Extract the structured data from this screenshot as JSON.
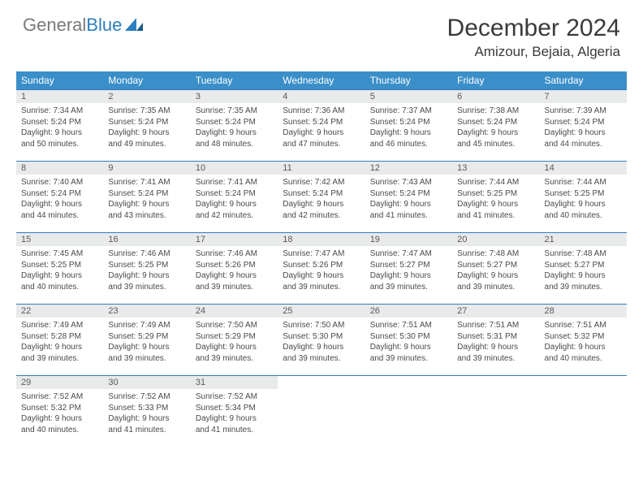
{
  "logo": {
    "text1": "General",
    "text2": "Blue"
  },
  "header": {
    "title": "December 2024",
    "location": "Amizour, Bejaia, Algeria"
  },
  "colors": {
    "header_bg": "#3b8fc9",
    "header_fg": "#ffffff",
    "daynum_bg": "#e9eaea",
    "border": "#2d7fbf",
    "logo_gray": "#7a7a7a",
    "logo_blue": "#2d7fbf"
  },
  "columns": [
    "Sunday",
    "Monday",
    "Tuesday",
    "Wednesday",
    "Thursday",
    "Friday",
    "Saturday"
  ],
  "weeks": [
    [
      {
        "n": "1",
        "sr": "Sunrise: 7:34 AM",
        "ss": "Sunset: 5:24 PM",
        "d1": "Daylight: 9 hours",
        "d2": "and 50 minutes."
      },
      {
        "n": "2",
        "sr": "Sunrise: 7:35 AM",
        "ss": "Sunset: 5:24 PM",
        "d1": "Daylight: 9 hours",
        "d2": "and 49 minutes."
      },
      {
        "n": "3",
        "sr": "Sunrise: 7:35 AM",
        "ss": "Sunset: 5:24 PM",
        "d1": "Daylight: 9 hours",
        "d2": "and 48 minutes."
      },
      {
        "n": "4",
        "sr": "Sunrise: 7:36 AM",
        "ss": "Sunset: 5:24 PM",
        "d1": "Daylight: 9 hours",
        "d2": "and 47 minutes."
      },
      {
        "n": "5",
        "sr": "Sunrise: 7:37 AM",
        "ss": "Sunset: 5:24 PM",
        "d1": "Daylight: 9 hours",
        "d2": "and 46 minutes."
      },
      {
        "n": "6",
        "sr": "Sunrise: 7:38 AM",
        "ss": "Sunset: 5:24 PM",
        "d1": "Daylight: 9 hours",
        "d2": "and 45 minutes."
      },
      {
        "n": "7",
        "sr": "Sunrise: 7:39 AM",
        "ss": "Sunset: 5:24 PM",
        "d1": "Daylight: 9 hours",
        "d2": "and 44 minutes."
      }
    ],
    [
      {
        "n": "8",
        "sr": "Sunrise: 7:40 AM",
        "ss": "Sunset: 5:24 PM",
        "d1": "Daylight: 9 hours",
        "d2": "and 44 minutes."
      },
      {
        "n": "9",
        "sr": "Sunrise: 7:41 AM",
        "ss": "Sunset: 5:24 PM",
        "d1": "Daylight: 9 hours",
        "d2": "and 43 minutes."
      },
      {
        "n": "10",
        "sr": "Sunrise: 7:41 AM",
        "ss": "Sunset: 5:24 PM",
        "d1": "Daylight: 9 hours",
        "d2": "and 42 minutes."
      },
      {
        "n": "11",
        "sr": "Sunrise: 7:42 AM",
        "ss": "Sunset: 5:24 PM",
        "d1": "Daylight: 9 hours",
        "d2": "and 42 minutes."
      },
      {
        "n": "12",
        "sr": "Sunrise: 7:43 AM",
        "ss": "Sunset: 5:24 PM",
        "d1": "Daylight: 9 hours",
        "d2": "and 41 minutes."
      },
      {
        "n": "13",
        "sr": "Sunrise: 7:44 AM",
        "ss": "Sunset: 5:25 PM",
        "d1": "Daylight: 9 hours",
        "d2": "and 41 minutes."
      },
      {
        "n": "14",
        "sr": "Sunrise: 7:44 AM",
        "ss": "Sunset: 5:25 PM",
        "d1": "Daylight: 9 hours",
        "d2": "and 40 minutes."
      }
    ],
    [
      {
        "n": "15",
        "sr": "Sunrise: 7:45 AM",
        "ss": "Sunset: 5:25 PM",
        "d1": "Daylight: 9 hours",
        "d2": "and 40 minutes."
      },
      {
        "n": "16",
        "sr": "Sunrise: 7:46 AM",
        "ss": "Sunset: 5:25 PM",
        "d1": "Daylight: 9 hours",
        "d2": "and 39 minutes."
      },
      {
        "n": "17",
        "sr": "Sunrise: 7:46 AM",
        "ss": "Sunset: 5:26 PM",
        "d1": "Daylight: 9 hours",
        "d2": "and 39 minutes."
      },
      {
        "n": "18",
        "sr": "Sunrise: 7:47 AM",
        "ss": "Sunset: 5:26 PM",
        "d1": "Daylight: 9 hours",
        "d2": "and 39 minutes."
      },
      {
        "n": "19",
        "sr": "Sunrise: 7:47 AM",
        "ss": "Sunset: 5:27 PM",
        "d1": "Daylight: 9 hours",
        "d2": "and 39 minutes."
      },
      {
        "n": "20",
        "sr": "Sunrise: 7:48 AM",
        "ss": "Sunset: 5:27 PM",
        "d1": "Daylight: 9 hours",
        "d2": "and 39 minutes."
      },
      {
        "n": "21",
        "sr": "Sunrise: 7:48 AM",
        "ss": "Sunset: 5:27 PM",
        "d1": "Daylight: 9 hours",
        "d2": "and 39 minutes."
      }
    ],
    [
      {
        "n": "22",
        "sr": "Sunrise: 7:49 AM",
        "ss": "Sunset: 5:28 PM",
        "d1": "Daylight: 9 hours",
        "d2": "and 39 minutes."
      },
      {
        "n": "23",
        "sr": "Sunrise: 7:49 AM",
        "ss": "Sunset: 5:29 PM",
        "d1": "Daylight: 9 hours",
        "d2": "and 39 minutes."
      },
      {
        "n": "24",
        "sr": "Sunrise: 7:50 AM",
        "ss": "Sunset: 5:29 PM",
        "d1": "Daylight: 9 hours",
        "d2": "and 39 minutes."
      },
      {
        "n": "25",
        "sr": "Sunrise: 7:50 AM",
        "ss": "Sunset: 5:30 PM",
        "d1": "Daylight: 9 hours",
        "d2": "and 39 minutes."
      },
      {
        "n": "26",
        "sr": "Sunrise: 7:51 AM",
        "ss": "Sunset: 5:30 PM",
        "d1": "Daylight: 9 hours",
        "d2": "and 39 minutes."
      },
      {
        "n": "27",
        "sr": "Sunrise: 7:51 AM",
        "ss": "Sunset: 5:31 PM",
        "d1": "Daylight: 9 hours",
        "d2": "and 39 minutes."
      },
      {
        "n": "28",
        "sr": "Sunrise: 7:51 AM",
        "ss": "Sunset: 5:32 PM",
        "d1": "Daylight: 9 hours",
        "d2": "and 40 minutes."
      }
    ],
    [
      {
        "n": "29",
        "sr": "Sunrise: 7:52 AM",
        "ss": "Sunset: 5:32 PM",
        "d1": "Daylight: 9 hours",
        "d2": "and 40 minutes."
      },
      {
        "n": "30",
        "sr": "Sunrise: 7:52 AM",
        "ss": "Sunset: 5:33 PM",
        "d1": "Daylight: 9 hours",
        "d2": "and 41 minutes."
      },
      {
        "n": "31",
        "sr": "Sunrise: 7:52 AM",
        "ss": "Sunset: 5:34 PM",
        "d1": "Daylight: 9 hours",
        "d2": "and 41 minutes."
      },
      {
        "empty": true
      },
      {
        "empty": true
      },
      {
        "empty": true
      },
      {
        "empty": true
      }
    ]
  ]
}
